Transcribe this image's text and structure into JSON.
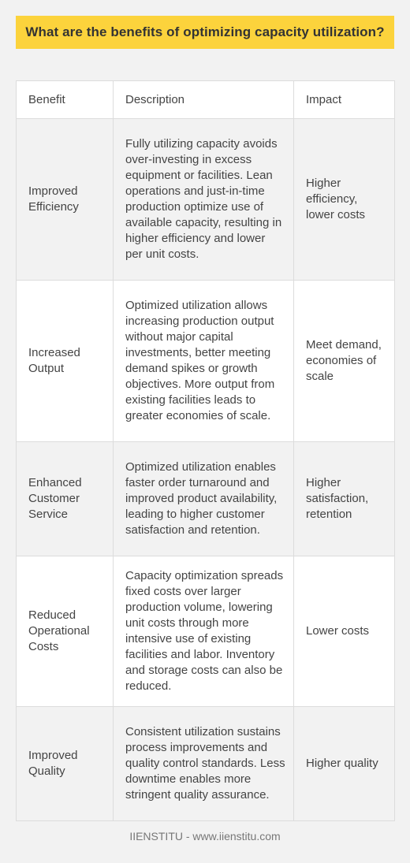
{
  "title": "What are the benefits of optimizing capacity utilization?",
  "table": {
    "headers": [
      "Benefit",
      "Description",
      "Impact"
    ],
    "rows": [
      {
        "benefit": "Improved Efficiency",
        "description": "Fully utilizing capacity avoids over-investing in excess equipment or facilities. Lean operations and just-in-time production optimize use of available capacity, resulting in higher efficiency and lower per unit costs.",
        "impact": "Higher efficiency, lower costs"
      },
      {
        "benefit": "Increased Output",
        "description": "Optimized utilization allows increasing production output without major capital investments, better meeting demand spikes or growth objectives. More output from existing facilities leads to greater economies of scale.",
        "impact": "Meet demand, economies of scale"
      },
      {
        "benefit": "Enhanced Customer Service",
        "description": "Optimized utilization enables faster order turnaround and improved product availability, leading to higher customer satisfaction and retention.",
        "impact": "Higher satisfaction, retention"
      },
      {
        "benefit": "Reduced Operational Costs",
        "description": "Capacity optimization spreads fixed costs over larger production volume, lowering unit costs through more intensive use of existing facilities and labor. Inventory and storage costs can also be reduced.",
        "impact": "Lower costs"
      },
      {
        "benefit": "Improved Quality",
        "description": "Consistent utilization sustains process improvements and quality control standards. Less downtime enables more stringent quality assurance.",
        "impact": "Higher quality"
      }
    ]
  },
  "footer": "IIENSTITU - www.iienstitu.com"
}
